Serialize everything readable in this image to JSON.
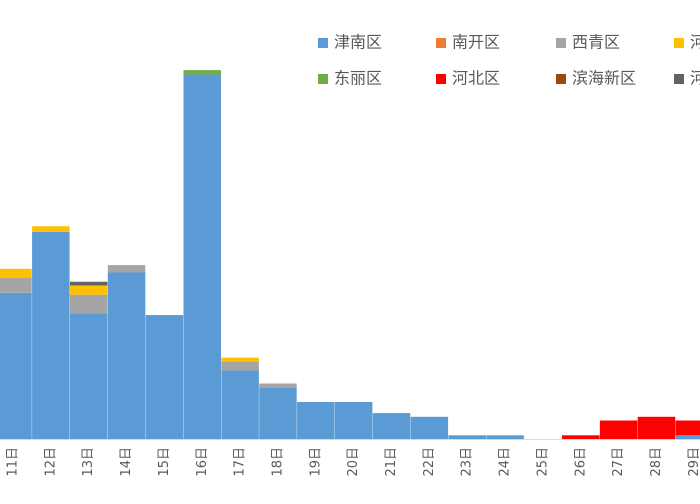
{
  "chart_data": {
    "type": "bar",
    "stacked": true,
    "title": "",
    "xlabel": "",
    "ylabel": "",
    "legend_position": "top-right",
    "grid": false,
    "ylim": [
      0,
      100
    ],
    "categories": [
      "11日",
      "12日",
      "13日",
      "14日",
      "15日",
      "16日",
      "17日",
      "18日",
      "19日",
      "20日",
      "21日",
      "22日",
      "23日",
      "24日",
      "25日",
      "26日",
      "27日",
      "28日",
      "29日"
    ],
    "series": [
      {
        "name": "津南区",
        "color": "#5B9BD5",
        "values": [
          39.5,
          56.0,
          34.0,
          45.0,
          33.5,
          98.5,
          18.5,
          14.0,
          10.0,
          10.0,
          7.0,
          6.0,
          1.0,
          1.0,
          0,
          0,
          0,
          0,
          1.0
        ]
      },
      {
        "name": "南开区",
        "color": "#ED7D31",
        "values": [
          0,
          0,
          0,
          0,
          0,
          0,
          0,
          0,
          0,
          0,
          0,
          0,
          0,
          0,
          0,
          0,
          0,
          0,
          0
        ]
      },
      {
        "name": "西青区",
        "color": "#A5A5A5",
        "values": [
          4.0,
          0,
          5.0,
          2.0,
          0,
          0,
          2.5,
          1.0,
          0,
          0,
          0,
          0,
          0,
          0,
          0,
          0,
          0,
          0,
          0
        ]
      },
      {
        "name": "河",
        "color": "#FFC000",
        "values": [
          2.5,
          1.5,
          2.5,
          0,
          0,
          0,
          1.0,
          0,
          0,
          0,
          0,
          0,
          0,
          0,
          0,
          0,
          0,
          0,
          0
        ]
      },
      {
        "name": "东丽区",
        "color": "#70AD47",
        "values": [
          0,
          0,
          0,
          0,
          0,
          1.2,
          0,
          0,
          0,
          0,
          0,
          0,
          0,
          0,
          0,
          0,
          0,
          0,
          0
        ]
      },
      {
        "name": "河北区",
        "color": "#FF0000",
        "values": [
          0,
          0,
          0,
          0,
          0,
          0,
          0,
          0,
          0,
          0,
          0,
          0,
          0,
          0,
          0,
          1.0,
          5.0,
          6.0,
          4.0
        ]
      },
      {
        "name": "滨海新区",
        "color": "#9E480E",
        "values": [
          0,
          0,
          0,
          0,
          0,
          0,
          0,
          0,
          0,
          0,
          0,
          0,
          0,
          0,
          0,
          0,
          0,
          0,
          0
        ]
      },
      {
        "name": "河",
        "color": "#636363",
        "values": [
          0,
          0,
          1.0,
          0,
          0,
          0,
          0,
          0,
          0,
          0,
          0,
          0,
          0,
          0,
          0,
          0,
          0,
          0,
          0
        ]
      }
    ]
  }
}
